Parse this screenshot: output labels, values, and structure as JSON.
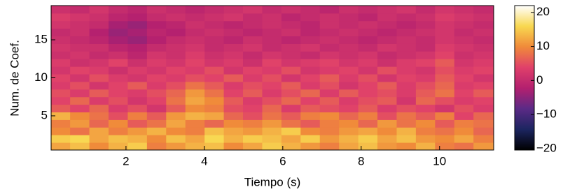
{
  "chart_data": {
    "type": "heatmap",
    "xlabel": "Tiempo (s)",
    "ylabel": "Num. de Coef.",
    "x": [
      0.33,
      0.82,
      1.31,
      1.8,
      2.29,
      2.78,
      3.27,
      3.76,
      4.25,
      4.74,
      5.23,
      5.72,
      6.21,
      6.7,
      7.19,
      7.68,
      8.17,
      8.66,
      9.15,
      9.64,
      10.13,
      10.62,
      11.11
    ],
    "y": [
      1,
      2,
      3,
      4,
      5,
      6,
      7,
      8,
      9,
      10,
      11,
      12,
      13,
      14,
      15,
      16,
      17,
      18,
      19
    ],
    "z": [
      [
        12,
        14,
        10,
        13,
        15,
        9,
        11,
        13,
        14,
        10,
        12,
        15,
        13,
        11,
        9,
        12,
        14,
        11,
        10,
        13,
        9,
        8,
        11
      ],
      [
        15,
        16,
        12,
        14,
        13,
        10,
        14,
        12,
        16,
        13,
        15,
        14,
        12,
        15,
        11,
        13,
        15,
        12,
        14,
        11,
        10,
        12,
        9
      ],
      [
        10,
        8,
        12,
        9,
        11,
        13,
        10,
        9,
        14,
        12,
        11,
        13,
        15,
        10,
        9,
        11,
        12,
        10,
        13,
        9,
        8,
        10,
        7
      ],
      [
        9,
        11,
        7,
        10,
        6,
        8,
        12,
        9,
        7,
        10,
        9,
        11,
        8,
        6,
        9,
        10,
        7,
        11,
        8,
        10,
        6,
        9,
        8
      ],
      [
        13,
        10,
        8,
        5,
        9,
        6,
        11,
        13,
        12,
        7,
        5,
        8,
        6,
        9,
        10,
        7,
        9,
        5,
        8,
        6,
        9,
        4,
        7
      ],
      [
        6,
        4,
        7,
        3,
        5,
        2,
        6,
        10,
        9,
        5,
        4,
        7,
        3,
        6,
        5,
        4,
        6,
        3,
        5,
        4,
        2,
        5,
        3
      ],
      [
        4,
        7,
        3,
        5,
        2,
        4,
        8,
        12,
        10,
        6,
        3,
        5,
        7,
        4,
        6,
        3,
        5,
        6,
        2,
        7,
        5,
        3,
        4
      ],
      [
        5,
        3,
        6,
        4,
        3,
        5,
        7,
        11,
        8,
        4,
        6,
        3,
        5,
        7,
        3,
        6,
        4,
        5,
        3,
        6,
        8,
        4,
        6
      ],
      [
        3,
        5,
        2,
        4,
        6,
        3,
        5,
        8,
        6,
        3,
        5,
        4,
        6,
        3,
        5,
        2,
        4,
        6,
        3,
        5,
        7,
        3,
        4
      ],
      [
        4,
        2,
        5,
        3,
        2,
        4,
        3,
        5,
        4,
        6,
        3,
        5,
        2,
        4,
        6,
        3,
        5,
        2,
        4,
        3,
        6,
        4,
        2
      ],
      [
        2,
        4,
        3,
        1,
        3,
        2,
        4,
        3,
        5,
        2,
        4,
        3,
        5,
        2,
        3,
        4,
        2,
        5,
        3,
        2,
        5,
        3,
        4
      ],
      [
        3,
        1,
        2,
        4,
        1,
        3,
        2,
        4,
        2,
        3,
        1,
        4,
        2,
        3,
        4,
        2,
        3,
        1,
        3,
        4,
        6,
        2,
        3
      ],
      [
        1,
        2,
        0,
        1,
        -1,
        2,
        1,
        3,
        1,
        2,
        0,
        2,
        1,
        0,
        2,
        1,
        2,
        0,
        1,
        2,
        4,
        1,
        2
      ],
      [
        2,
        1,
        1,
        -1,
        -2,
        0,
        1,
        2,
        0,
        1,
        2,
        0,
        1,
        2,
        0,
        1,
        0,
        2,
        1,
        0,
        3,
        2,
        1
      ],
      [
        1,
        0,
        -1,
        -3,
        -4,
        -2,
        0,
        1,
        0,
        -1,
        1,
        0,
        -1,
        0,
        1,
        0,
        -1,
        0,
        1,
        0,
        2,
        1,
        0
      ],
      [
        0,
        1,
        -2,
        -4,
        -3,
        -1,
        -2,
        0,
        1,
        0,
        -1,
        0,
        1,
        -1,
        0,
        1,
        0,
        -1,
        0,
        1,
        2,
        0,
        1
      ],
      [
        2,
        1,
        0,
        -3,
        -4,
        -2,
        -1,
        1,
        0,
        -1,
        0,
        1,
        0,
        -1,
        1,
        0,
        1,
        0,
        -1,
        0,
        2,
        1,
        0
      ],
      [
        3,
        2,
        1,
        -1,
        -2,
        0,
        1,
        0,
        1,
        2,
        0,
        1,
        -1,
        0,
        1,
        0,
        -1,
        1,
        0,
        1,
        3,
        2,
        1
      ],
      [
        1,
        0,
        2,
        0,
        -1,
        1,
        0,
        -1,
        0,
        1,
        2,
        0,
        1,
        0,
        -1,
        1,
        0,
        1,
        2,
        0,
        2,
        1,
        0
      ]
    ],
    "xlim": [
      0.09,
      11.38
    ],
    "xticks": [
      2,
      4,
      6,
      8,
      10
    ],
    "ylim": [
      0.5,
      19.5
    ],
    "yticks": [
      5,
      10,
      15
    ],
    "clim": [
      -20.4,
      22
    ],
    "cticks": [
      {
        "value": -20,
        "label": "−20"
      },
      {
        "value": -10,
        "label": "−10"
      },
      0,
      10,
      20
    ],
    "colormap": [
      "#000000",
      "#1c2560",
      "#5b2a86",
      "#b3206f",
      "#e0406a",
      "#f08a3a",
      "#f8d850",
      "#ffffff"
    ]
  }
}
